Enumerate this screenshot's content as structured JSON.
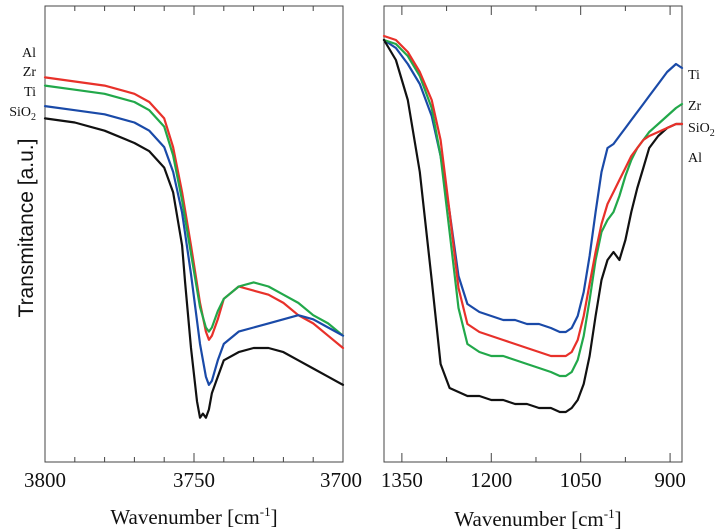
{
  "chart_data": [
    {
      "type": "line",
      "panel": "left",
      "xlabel": "Wavenumber [cm",
      "xlabel_sup": "-1",
      "xlabel_end": "]",
      "ylabel": "Transmitance [a.u.]",
      "xlim": [
        3800,
        3700
      ],
      "x_ticks": [
        "3800",
        "3750",
        "3700"
      ],
      "x_tick_values": [
        3800,
        3750,
        3700
      ],
      "minor_ticks": [
        3790,
        3780,
        3770,
        3760,
        3740,
        3730,
        3720,
        3710
      ],
      "ylim": [
        0,
        1
      ],
      "series_labels": [
        {
          "name": "Al",
          "sub": ""
        },
        {
          "name": "Zr",
          "sub": ""
        },
        {
          "name": "Ti",
          "sub": ""
        },
        {
          "name": "SiO",
          "sub": "2"
        }
      ],
      "series": [
        {
          "name": "Al",
          "color": "#e8312a",
          "x": [
            3800,
            3790,
            3780,
            3770,
            3765,
            3760,
            3757,
            3754,
            3751,
            3748,
            3746,
            3745,
            3744,
            3742,
            3740,
            3735,
            3730,
            3725,
            3720,
            3715,
            3710,
            3705,
            3700
          ],
          "y": [
            0.86,
            0.85,
            0.84,
            0.82,
            0.8,
            0.76,
            0.69,
            0.58,
            0.45,
            0.31,
            0.24,
            0.22,
            0.23,
            0.27,
            0.32,
            0.35,
            0.34,
            0.33,
            0.31,
            0.28,
            0.26,
            0.23,
            0.2
          ]
        },
        {
          "name": "Zr",
          "color": "#22a84a",
          "x": [
            3800,
            3790,
            3780,
            3770,
            3765,
            3760,
            3757,
            3754,
            3751,
            3748,
            3746,
            3745,
            3744,
            3742,
            3740,
            3735,
            3730,
            3725,
            3720,
            3715,
            3710,
            3705,
            3700
          ],
          "y": [
            0.84,
            0.83,
            0.82,
            0.8,
            0.78,
            0.74,
            0.67,
            0.56,
            0.43,
            0.3,
            0.25,
            0.24,
            0.25,
            0.29,
            0.32,
            0.35,
            0.36,
            0.35,
            0.33,
            0.31,
            0.28,
            0.26,
            0.23
          ]
        },
        {
          "name": "Ti",
          "color": "#1a4aa8",
          "x": [
            3800,
            3790,
            3780,
            3770,
            3765,
            3760,
            3757,
            3754,
            3751,
            3748,
            3746,
            3745,
            3744,
            3742,
            3740,
            3735,
            3730,
            3725,
            3720,
            3715,
            3710,
            3705,
            3700
          ],
          "y": [
            0.79,
            0.78,
            0.77,
            0.75,
            0.73,
            0.69,
            0.63,
            0.53,
            0.38,
            0.21,
            0.13,
            0.11,
            0.12,
            0.17,
            0.21,
            0.24,
            0.25,
            0.26,
            0.27,
            0.28,
            0.27,
            0.25,
            0.23
          ]
        },
        {
          "name": "SiO2",
          "color": "#111111",
          "x": [
            3800,
            3790,
            3780,
            3770,
            3765,
            3760,
            3757,
            3754,
            3753,
            3751,
            3749,
            3748,
            3747,
            3746,
            3745,
            3744,
            3742,
            3740,
            3735,
            3730,
            3725,
            3720,
            3715,
            3710,
            3705,
            3700
          ],
          "y": [
            0.76,
            0.75,
            0.73,
            0.7,
            0.68,
            0.64,
            0.58,
            0.45,
            0.36,
            0.2,
            0.07,
            0.03,
            0.04,
            0.03,
            0.05,
            0.09,
            0.13,
            0.17,
            0.19,
            0.2,
            0.2,
            0.19,
            0.17,
            0.15,
            0.13,
            0.11
          ]
        }
      ]
    },
    {
      "type": "line",
      "panel": "right",
      "xlabel": "Wavenumber [cm",
      "xlabel_sup": "-1",
      "xlabel_end": "]",
      "xlim": [
        1380,
        880
      ],
      "x_ticks": [
        "1350",
        "1200",
        "1050",
        "900"
      ],
      "x_tick_values": [
        1350,
        1200,
        1050,
        900
      ],
      "minor_ticks": [
        1275,
        1125,
        975
      ],
      "ylim": [
        0,
        1
      ],
      "series_labels": [
        {
          "name": "Ti",
          "sub": ""
        },
        {
          "name": "Zr",
          "sub": ""
        },
        {
          "name": "SiO",
          "sub": "2"
        },
        {
          "name": "Al",
          "sub": ""
        }
      ],
      "series": [
        {
          "name": "Ti",
          "color": "#1a4aa8",
          "x": [
            1380,
            1360,
            1340,
            1320,
            1300,
            1285,
            1270,
            1255,
            1240,
            1220,
            1200,
            1180,
            1160,
            1140,
            1120,
            1100,
            1085,
            1075,
            1065,
            1055,
            1045,
            1035,
            1025,
            1015,
            1005,
            995,
            985,
            975,
            965,
            955,
            945,
            935,
            920,
            905,
            890,
            880
          ],
          "y": [
            0.95,
            0.93,
            0.89,
            0.84,
            0.76,
            0.66,
            0.52,
            0.36,
            0.29,
            0.27,
            0.26,
            0.25,
            0.25,
            0.24,
            0.24,
            0.23,
            0.22,
            0.22,
            0.23,
            0.26,
            0.32,
            0.41,
            0.52,
            0.62,
            0.68,
            0.69,
            0.71,
            0.73,
            0.75,
            0.77,
            0.79,
            0.81,
            0.84,
            0.87,
            0.89,
            0.88
          ]
        },
        {
          "name": "Zr",
          "color": "#22a84a",
          "x": [
            1380,
            1360,
            1340,
            1320,
            1300,
            1285,
            1270,
            1255,
            1240,
            1220,
            1200,
            1180,
            1160,
            1140,
            1120,
            1100,
            1085,
            1075,
            1065,
            1055,
            1045,
            1035,
            1025,
            1015,
            1005,
            995,
            985,
            975,
            965,
            955,
            945,
            935,
            920,
            905,
            890,
            880
          ],
          "y": [
            0.95,
            0.94,
            0.91,
            0.86,
            0.78,
            0.66,
            0.47,
            0.28,
            0.19,
            0.17,
            0.16,
            0.16,
            0.15,
            0.14,
            0.13,
            0.12,
            0.11,
            0.11,
            0.12,
            0.15,
            0.21,
            0.3,
            0.4,
            0.47,
            0.5,
            0.52,
            0.56,
            0.61,
            0.65,
            0.68,
            0.7,
            0.72,
            0.74,
            0.76,
            0.78,
            0.79
          ]
        },
        {
          "name": "SiO2",
          "color": "#111111",
          "x": [
            1380,
            1360,
            1340,
            1320,
            1300,
            1285,
            1270,
            1255,
            1240,
            1220,
            1200,
            1180,
            1160,
            1140,
            1120,
            1100,
            1085,
            1075,
            1065,
            1055,
            1045,
            1035,
            1025,
            1015,
            1005,
            995,
            985,
            975,
            965,
            955,
            945,
            935,
            920,
            905,
            890,
            880
          ],
          "y": [
            0.95,
            0.9,
            0.8,
            0.62,
            0.35,
            0.14,
            0.08,
            0.07,
            0.06,
            0.06,
            0.05,
            0.05,
            0.04,
            0.04,
            0.03,
            0.03,
            0.02,
            0.02,
            0.03,
            0.05,
            0.09,
            0.16,
            0.26,
            0.35,
            0.4,
            0.42,
            0.4,
            0.45,
            0.52,
            0.58,
            0.63,
            0.68,
            0.71,
            0.73,
            0.74,
            0.74
          ]
        },
        {
          "name": "Al",
          "color": "#e8312a",
          "x": [
            1380,
            1360,
            1340,
            1320,
            1300,
            1285,
            1270,
            1255,
            1240,
            1220,
            1200,
            1180,
            1160,
            1140,
            1120,
            1100,
            1085,
            1075,
            1065,
            1055,
            1045,
            1035,
            1025,
            1015,
            1005,
            995,
            985,
            975,
            965,
            955,
            945,
            935,
            920,
            905,
            890,
            880
          ],
          "y": [
            0.96,
            0.95,
            0.92,
            0.87,
            0.8,
            0.7,
            0.52,
            0.33,
            0.24,
            0.22,
            0.21,
            0.2,
            0.19,
            0.18,
            0.17,
            0.16,
            0.16,
            0.16,
            0.17,
            0.2,
            0.26,
            0.34,
            0.42,
            0.49,
            0.54,
            0.57,
            0.6,
            0.63,
            0.66,
            0.68,
            0.7,
            0.71,
            0.72,
            0.73,
            0.74,
            0.74
          ]
        }
      ]
    }
  ]
}
